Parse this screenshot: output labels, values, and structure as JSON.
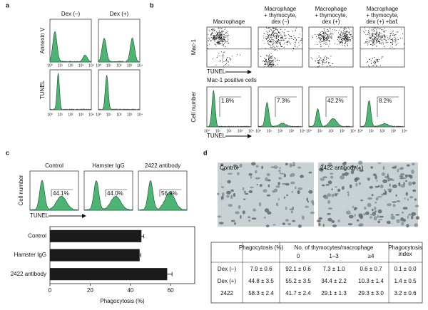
{
  "panel_a": {
    "label": "a",
    "columns": [
      "Dex (–)",
      "Dex (+)"
    ],
    "row_labels": [
      "Annexin V",
      "TUNEL"
    ]
  },
  "log_ticks": [
    "10⁰",
    "10¹",
    "10²",
    "10³",
    "10⁴"
  ],
  "panel_b": {
    "label": "b",
    "columns": [
      [
        "Macrophage"
      ],
      [
        "Macrophage",
        "+ thymocyte,",
        "dex (–)"
      ],
      [
        "Macrophage",
        "+ thymocyte,",
        "dex (+)"
      ],
      [
        "Macrophage",
        "+ thymocyte,",
        "dex (+) +baf."
      ]
    ],
    "dot_y_label": "Mac-1",
    "x_label": "TUNEL",
    "subtitle": "Mac-1 positive cells",
    "hist_y_label": "Cell number",
    "percentages": [
      "1.8%",
      "7.3%",
      "42.2%",
      "8.2%"
    ]
  },
  "panel_c": {
    "label": "c",
    "columns": [
      "Control",
      "Hamster IgG",
      "2422 antibody"
    ],
    "percentages": [
      "44.1%",
      "44.0%",
      "56.9%"
    ],
    "y_label": "Cell number",
    "x_label": "TUNEL"
  },
  "chart_data": {
    "type": "bar",
    "orientation": "horizontal",
    "categories": [
      "Control",
      "Hamster IgG",
      "2422 antibody"
    ],
    "values": [
      45.5,
      44.6,
      58.3
    ],
    "errors": [
      1.2,
      0.6,
      2.4
    ],
    "color": "#1a1a1a",
    "xlim": [
      0,
      72
    ],
    "xticks": [
      0,
      20,
      40,
      60
    ],
    "x_label": "Phagocytosis (%)"
  },
  "panel_d": {
    "label": "d",
    "captions": [
      "Control",
      "2422 antibody(+)"
    ],
    "table": {
      "phagocytosis": "Phagocytosis (%)",
      "thymocytes": "No. of thymocytes/macrophage",
      "sub": [
        "0",
        "1–3",
        "≥4"
      ],
      "index": [
        "Phagocytosis",
        "index"
      ],
      "rows": [
        [
          "Dex (–)",
          "7.9 ± 0.6",
          "92.1 ± 0.6",
          "7.3 ± 1.0",
          "0.6 ± 0.7",
          "0.1 ± 0.0"
        ],
        [
          "Dex (+)",
          "44.8 ± 3.5",
          "55.2 ± 3.5",
          "34.4 ± 2.2",
          "10.3 ± 1.4",
          "1.4 ± 0.5"
        ],
        [
          "2422",
          "58.3 ± 2.4",
          "41.7 ± 2.4",
          "29.1 ± 1.3",
          "29.3 ± 3.0",
          "3.2 ± 0.6"
        ]
      ]
    }
  }
}
